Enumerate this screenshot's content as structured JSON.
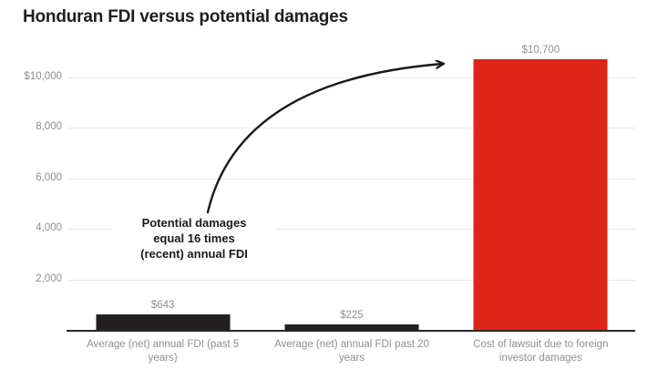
{
  "chart_data": {
    "type": "bar",
    "title": "Honduran FDI versus potential damages",
    "categories": [
      "Average (net) annual FDI (past 5 years)",
      "Average (net) annual FDI past 20 years",
      "Cost of lawsuit due to foreign investor damages"
    ],
    "values": [
      643,
      225,
      10700
    ],
    "bars": [
      {
        "category": "Average (net) annual FDI (past 5 years)",
        "value": 643,
        "label": "$643",
        "color": "#231f20"
      },
      {
        "category": "Average (net) annual FDI past 20 years",
        "value": 225,
        "label": "$225",
        "color": "#231f20"
      },
      {
        "category": "Cost of lawsuit due to foreign investor damages",
        "value": 10700,
        "label": "$10,700",
        "color": "#dd2418"
      }
    ],
    "yticks": [
      {
        "value": 10000,
        "label": "$10,000"
      },
      {
        "value": 8000,
        "label": "8,000"
      },
      {
        "value": 6000,
        "label": "6,000"
      },
      {
        "value": 4000,
        "label": "4,000"
      },
      {
        "value": 2000,
        "label": "2,000"
      }
    ],
    "ylim": [
      0,
      11000
    ],
    "grid": true,
    "legend": "none",
    "annotation": {
      "lines": [
        "Potential damages",
        "equal 16 times",
        "(recent) annual FDI"
      ]
    },
    "colors": {
      "bar_dark": "#231f20",
      "bar_red": "#dd2418",
      "grid": "#e9e9e9",
      "axis": "#2b2728",
      "label_gray": "#8f8f8f",
      "title": "#1f1f1f",
      "annotation": "#1a1a1a"
    }
  }
}
